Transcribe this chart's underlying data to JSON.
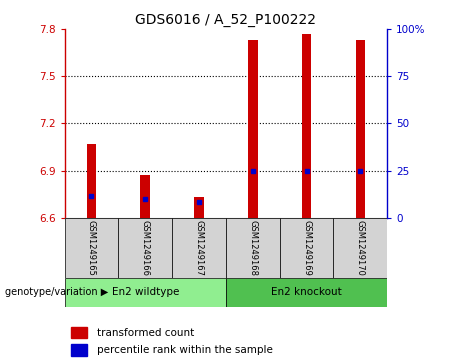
{
  "title": "GDS6016 / A_52_P100222",
  "samples": [
    "GSM1249165",
    "GSM1249166",
    "GSM1249167",
    "GSM1249168",
    "GSM1249169",
    "GSM1249170"
  ],
  "groups": [
    "En2 wildtype",
    "En2 wildtype",
    "En2 wildtype",
    "En2 knockout",
    "En2 knockout",
    "En2 knockout"
  ],
  "transformed_counts": [
    7.07,
    6.87,
    6.73,
    7.73,
    7.77,
    7.73
  ],
  "percentile_ranks": [
    6.74,
    6.72,
    6.7,
    6.9,
    6.9,
    6.9
  ],
  "ymin": 6.6,
  "ymax": 7.8,
  "yticks": [
    6.6,
    6.9,
    7.2,
    7.5,
    7.8
  ],
  "ytick_labels": [
    "6.6",
    "6.9",
    "7.2",
    "7.5",
    "7.8"
  ],
  "right_yticks": [
    0,
    25,
    50,
    75,
    100
  ],
  "bar_color": "#CC0000",
  "marker_color": "#0000CC",
  "bar_width": 0.18,
  "axis_color": "#CC0000",
  "right_axis_color": "#0000CC",
  "bg_color": "#FFFFFF",
  "grid_color": "#000000",
  "title_fontsize": 10,
  "wildtype_color": "#90EE90",
  "knockout_color": "#50C050",
  "sample_bg_color": "#D3D3D3"
}
